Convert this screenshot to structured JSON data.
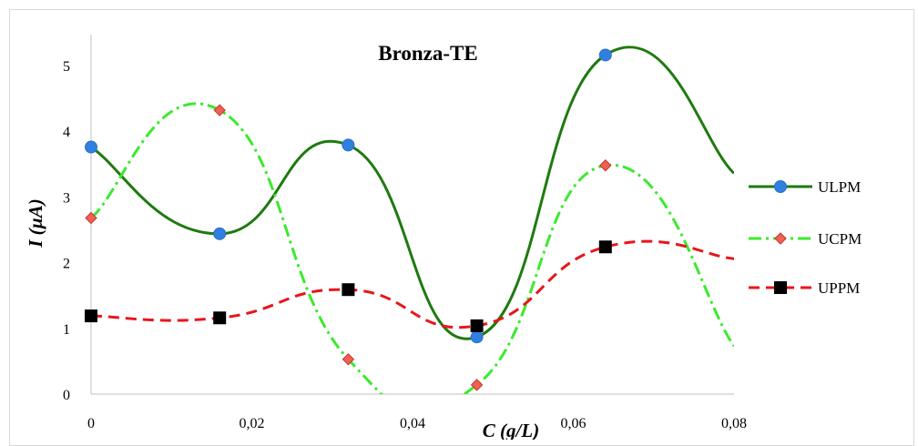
{
  "chart_data": {
    "type": "line",
    "title": "Bronza-TE",
    "xlabel": "C (g/L)",
    "ylabel": "I (µA)",
    "xlim": [
      0,
      0.08
    ],
    "ylim": [
      0,
      5
    ],
    "x_ticks": [
      "0",
      "0,02",
      "0,04",
      "0,06",
      "0,08"
    ],
    "y_ticks": [
      "0",
      "1",
      "2",
      "3",
      "4",
      "5"
    ],
    "x": [
      0,
      0.016,
      0.032,
      0.048,
      0.064,
      0.08
    ],
    "series": [
      {
        "name": "ULPM",
        "values": [
          3.76,
          2.44,
          3.79,
          0.87,
          5.16,
          3.36
        ],
        "color": "#1f7a10",
        "marker": "circle",
        "marker_color": "#2f80e0",
        "line_style": "solid"
      },
      {
        "name": "UCPM",
        "values": [
          2.68,
          4.32,
          0.53,
          0.14,
          3.48,
          0.73
        ],
        "color": "#3bea2c",
        "marker": "diamond",
        "marker_color": "#f06055",
        "line_style": "dash-dot"
      },
      {
        "name": "UPPM",
        "values": [
          1.19,
          1.16,
          1.59,
          1.04,
          2.24,
          2.06
        ],
        "color": "#e8161b",
        "marker": "square",
        "marker_color": "#000000",
        "line_style": "dashed"
      }
    ],
    "grid": false,
    "legend_position": "right"
  }
}
